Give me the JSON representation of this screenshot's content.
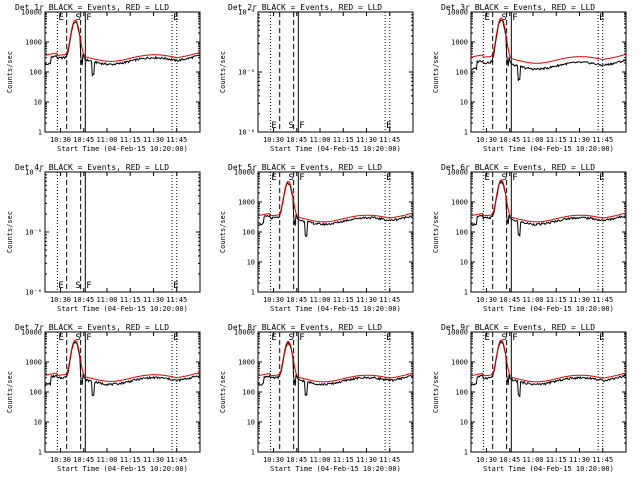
{
  "figure": {
    "xlabel": "Start Time (04-Feb-15 10:20:00)",
    "ylabel": "Counts/sec",
    "x_ticks": [
      "10:30",
      "10:45",
      "11:00",
      "11:15",
      "11:30",
      "11:45"
    ],
    "x_tick_minutes": [
      10,
      25,
      40,
      55,
      70,
      85
    ],
    "xlim_minutes": [
      0,
      100
    ],
    "series_colors": {
      "events": "#000000",
      "lld": "#e00000"
    },
    "marker_labels": {
      "E": "E",
      "S": "S",
      "F": "F"
    }
  },
  "chart_data": [
    {
      "type": "line",
      "title": "Det 1r BLACK = Events, RED = LLD",
      "has_data": true,
      "y_scale": "log",
      "ylim": [
        1,
        10000
      ],
      "y_ticks": [
        "1",
        "10",
        "100",
        "1000",
        "10000"
      ],
      "markers": {
        "E1": 8,
        "S": 19,
        "F": 26,
        "E2": 82
      },
      "lines": {
        "dotted": [
          8,
          82,
          85
        ],
        "dashed": [
          14,
          23
        ],
        "solid": [
          26
        ]
      },
      "events_base": 260,
      "lld_base": 300,
      "peak": 5000
    },
    {
      "type": "line",
      "title": "Det 2r BLACK = Events, RED = LLD",
      "has_data": false,
      "y_scale": "log",
      "ylim": [
        1e-06,
        0.0001
      ],
      "y_ticks": [
        "10⁻⁶",
        "10⁻⁵",
        "10⁻⁴"
      ],
      "markers": {
        "E1": 8,
        "S": 19,
        "F": 26,
        "E2": 82
      },
      "lines": {
        "dotted": [
          8,
          82,
          85
        ],
        "dashed": [
          14,
          23
        ],
        "solid": [
          26
        ]
      }
    },
    {
      "type": "line",
      "title": "Det 3r BLACK = Events, RED = LLD",
      "has_data": true,
      "y_scale": "log",
      "ylim": [
        1,
        10000
      ],
      "y_ticks": [
        "1",
        "10",
        "100",
        "1000",
        "10000"
      ],
      "markers": {
        "E1": 8,
        "S": 19,
        "F": 26,
        "E2": 82
      },
      "lines": {
        "dotted": [
          8,
          82,
          85
        ],
        "dashed": [
          14,
          23
        ],
        "solid": [
          26
        ]
      },
      "events_base": 180,
      "lld_base": 260,
      "peak": 6000
    },
    {
      "type": "line",
      "title": "Det 4r BLACK = Events, RED = LLD",
      "has_data": false,
      "y_scale": "log",
      "ylim": [
        1e-06,
        0.0001
      ],
      "y_ticks": [
        "10⁻⁶",
        "10⁻⁵",
        "10⁻⁴"
      ],
      "markers": {
        "E1": 8,
        "S": 19,
        "F": 26,
        "E2": 82
      },
      "lines": {
        "dotted": [
          8,
          82,
          85
        ],
        "dashed": [
          14,
          23
        ],
        "solid": [
          26
        ]
      }
    },
    {
      "type": "line",
      "title": "Det 5r BLACK = Events, RED = LLD",
      "has_data": true,
      "y_scale": "log",
      "ylim": [
        1,
        10000
      ],
      "y_ticks": [
        "1",
        "10",
        "100",
        "1000",
        "10000"
      ],
      "markers": {
        "E1": 8,
        "S": 19,
        "F": 26,
        "E2": 82
      },
      "lines": {
        "dotted": [
          8,
          82,
          85
        ],
        "dashed": [
          14,
          23
        ],
        "solid": [
          26
        ]
      },
      "events_base": 260,
      "lld_base": 290,
      "peak": 4500
    },
    {
      "type": "line",
      "title": "Det 6r BLACK = Events, RED = LLD",
      "has_data": true,
      "y_scale": "log",
      "ylim": [
        1,
        10000
      ],
      "y_ticks": [
        "1",
        "10",
        "100",
        "1000",
        "10000"
      ],
      "markers": {
        "E1": 8,
        "S": 19,
        "F": 26,
        "E2": 82
      },
      "lines": {
        "dotted": [
          8,
          82,
          85
        ],
        "dashed": [
          14,
          23
        ],
        "solid": [
          26
        ]
      },
      "events_base": 260,
      "lld_base": 290,
      "peak": 5000
    },
    {
      "type": "line",
      "title": "Det 7r BLACK = Events, RED = LLD",
      "has_data": true,
      "y_scale": "log",
      "ylim": [
        1,
        10000
      ],
      "y_ticks": [
        "1",
        "10",
        "100",
        "1000",
        "10000"
      ],
      "markers": {
        "E1": 8,
        "S": 19,
        "F": 26,
        "E2": 82
      },
      "lines": {
        "dotted": [
          8,
          82,
          85
        ],
        "dashed": [
          14,
          23
        ],
        "solid": [
          26
        ]
      },
      "events_base": 260,
      "lld_base": 300,
      "peak": 5000
    },
    {
      "type": "line",
      "title": "Det 8r BLACK = Events, RED = LLD",
      "has_data": true,
      "y_scale": "log",
      "ylim": [
        1,
        10000
      ],
      "y_ticks": [
        "1",
        "10",
        "100",
        "1000",
        "10000"
      ],
      "markers": {
        "E1": 8,
        "S": 19,
        "F": 26,
        "E2": 82
      },
      "lines": {
        "dotted": [
          8,
          82,
          85
        ],
        "dashed": [
          14,
          23
        ],
        "solid": [
          26
        ]
      },
      "events_base": 260,
      "lld_base": 290,
      "peak": 4500
    },
    {
      "type": "line",
      "title": "Det 9r BLACK = Events, RED = LLD",
      "has_data": true,
      "y_scale": "log",
      "ylim": [
        1,
        10000
      ],
      "y_ticks": [
        "1",
        "10",
        "100",
        "1000",
        "10000"
      ],
      "markers": {
        "E1": 8,
        "S": 19,
        "F": 26,
        "E2": 82
      },
      "lines": {
        "dotted": [
          8,
          82,
          85
        ],
        "dashed": [
          14,
          23
        ],
        "solid": [
          26
        ]
      },
      "events_base": 260,
      "lld_base": 290,
      "peak": 5000
    }
  ]
}
